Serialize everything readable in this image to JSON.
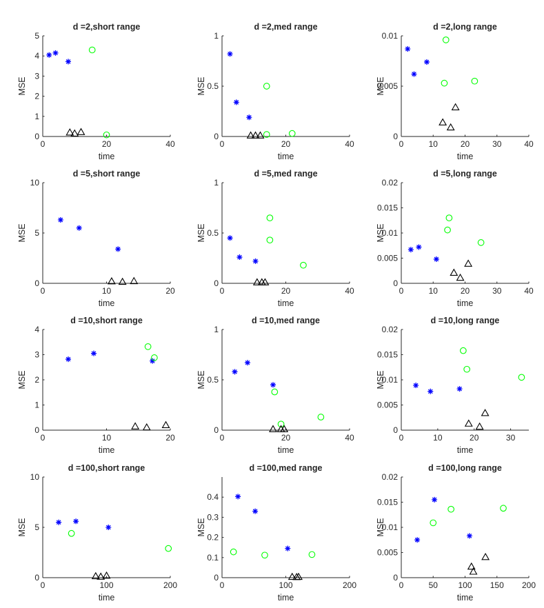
{
  "chart_data": [
    {
      "type": "scatter",
      "title": "d =2,short range",
      "xlabel": "time",
      "ylabel": "MSE",
      "xlim": [
        0,
        40
      ],
      "ylim": [
        0,
        5
      ],
      "xticks": [
        "0",
        "20",
        "40"
      ],
      "yticks": [
        "0",
        "1",
        "2",
        "3",
        "4",
        "5"
      ],
      "series": [
        {
          "name": "star",
          "marker": "*",
          "color": "#0000ff",
          "points": [
            [
              2,
              4.05
            ],
            [
              4,
              4.15
            ],
            [
              8,
              3.72
            ]
          ]
        },
        {
          "name": "circle",
          "marker": "o",
          "color": "#00ff00",
          "points": [
            [
              15.5,
              4.3
            ],
            [
              20,
              0.08
            ]
          ]
        },
        {
          "name": "triangle",
          "marker": "^",
          "color": "#000000",
          "points": [
            [
              8.5,
              0.2
            ],
            [
              10,
              0.15
            ],
            [
              12,
              0.22
            ]
          ]
        }
      ]
    },
    {
      "type": "scatter",
      "title": "d =2,med range",
      "xlabel": "time",
      "ylabel": "MSE",
      "xlim": [
        0,
        40
      ],
      "ylim": [
        0,
        1
      ],
      "xticks": [
        "0",
        "20",
        "40"
      ],
      "yticks": [
        "0",
        "0.5",
        "1"
      ],
      "series": [
        {
          "name": "star",
          "marker": "*",
          "color": "#0000ff",
          "points": [
            [
              2.5,
              0.82
            ],
            [
              4.5,
              0.34
            ],
            [
              8.5,
              0.19
            ]
          ]
        },
        {
          "name": "circle",
          "marker": "o",
          "color": "#00ff00",
          "points": [
            [
              14,
              0.5
            ],
            [
              14,
              0.02
            ],
            [
              22,
              0.03
            ]
          ]
        },
        {
          "name": "triangle",
          "marker": "^",
          "color": "#000000",
          "points": [
            [
              9,
              0.01
            ],
            [
              10.5,
              0.01
            ],
            [
              12,
              0.01
            ]
          ]
        }
      ]
    },
    {
      "type": "scatter",
      "title": "d =2,long range",
      "xlabel": "time",
      "ylabel": "MSE",
      "xlim": [
        0,
        40
      ],
      "ylim": [
        0,
        0.01
      ],
      "xticks": [
        "0",
        "10",
        "20",
        "30",
        "40"
      ],
      "yticks": [
        "0",
        "0.005",
        "0.01"
      ],
      "series": [
        {
          "name": "star",
          "marker": "*",
          "color": "#0000ff",
          "points": [
            [
              2,
              0.0087
            ],
            [
              4,
              0.0062
            ],
            [
              8,
              0.0074
            ]
          ]
        },
        {
          "name": "circle",
          "marker": "o",
          "color": "#00ff00",
          "points": [
            [
              14,
              0.0096
            ],
            [
              13.5,
              0.0053
            ],
            [
              23,
              0.0055
            ]
          ]
        },
        {
          "name": "triangle",
          "marker": "^",
          "color": "#000000",
          "points": [
            [
              13,
              0.0014
            ],
            [
              15.5,
              0.0009
            ],
            [
              17,
              0.0029
            ]
          ]
        }
      ]
    },
    {
      "type": "scatter",
      "title": "d =5,short range",
      "xlabel": "time",
      "ylabel": "MSE",
      "xlim": [
        0,
        20
      ],
      "ylim": [
        0,
        10
      ],
      "xticks": [
        "0",
        "10",
        "20"
      ],
      "yticks": [
        "0",
        "5",
        "10"
      ],
      "series": [
        {
          "name": "star",
          "marker": "*",
          "color": "#0000ff",
          "points": [
            [
              2.8,
              6.3
            ],
            [
              5.7,
              5.5
            ],
            [
              11.8,
              3.4
            ]
          ]
        },
        {
          "name": "circle",
          "marker": "o",
          "color": "#00ff00",
          "points": []
        },
        {
          "name": "triangle",
          "marker": "^",
          "color": "#000000",
          "points": [
            [
              10.8,
              0.2
            ],
            [
              12.5,
              0.15
            ],
            [
              14.3,
              0.22
            ]
          ]
        }
      ]
    },
    {
      "type": "scatter",
      "title": "d =5,med range",
      "xlabel": "time",
      "ylabel": "MSE",
      "xlim": [
        0,
        40
      ],
      "ylim": [
        0,
        1
      ],
      "xticks": [
        "0",
        "20",
        "40"
      ],
      "yticks": [
        "0",
        "0.5",
        "1"
      ],
      "series": [
        {
          "name": "star",
          "marker": "*",
          "color": "#0000ff",
          "points": [
            [
              2.5,
              0.45
            ],
            [
              5.5,
              0.26
            ],
            [
              10.5,
              0.22
            ]
          ]
        },
        {
          "name": "circle",
          "marker": "o",
          "color": "#00ff00",
          "points": [
            [
              15,
              0.65
            ],
            [
              15,
              0.43
            ],
            [
              25.5,
              0.18
            ]
          ]
        },
        {
          "name": "triangle",
          "marker": "^",
          "color": "#000000",
          "points": [
            [
              11,
              0.01
            ],
            [
              12.5,
              0.01
            ],
            [
              13.5,
              0.01
            ]
          ]
        }
      ]
    },
    {
      "type": "scatter",
      "title": "d =5,long range",
      "xlabel": "time",
      "ylabel": "MSE",
      "xlim": [
        0,
        40
      ],
      "ylim": [
        0,
        0.02
      ],
      "xticks": [
        "0",
        "10",
        "20",
        "30",
        "40"
      ],
      "yticks": [
        "0",
        "0.005",
        "0.01",
        "0.015",
        "0.02"
      ],
      "series": [
        {
          "name": "star",
          "marker": "*",
          "color": "#0000ff",
          "points": [
            [
              3,
              0.0067
            ],
            [
              5.5,
              0.0072
            ],
            [
              11,
              0.0048
            ]
          ]
        },
        {
          "name": "circle",
          "marker": "o",
          "color": "#00ff00",
          "points": [
            [
              15,
              0.013
            ],
            [
              14.5,
              0.0106
            ],
            [
              25,
              0.0081
            ]
          ]
        },
        {
          "name": "triangle",
          "marker": "^",
          "color": "#000000",
          "points": [
            [
              16.5,
              0.0021
            ],
            [
              18.5,
              0.0011
            ],
            [
              21,
              0.0039
            ]
          ]
        }
      ]
    },
    {
      "type": "scatter",
      "title": "d =10,short range",
      "xlabel": "time",
      "ylabel": "MSE",
      "xlim": [
        0,
        20
      ],
      "ylim": [
        0,
        4
      ],
      "xticks": [
        "0",
        "10",
        "20"
      ],
      "yticks": [
        "0",
        "1",
        "2",
        "3",
        "4"
      ],
      "series": [
        {
          "name": "star",
          "marker": "*",
          "color": "#0000ff",
          "points": [
            [
              4,
              2.82
            ],
            [
              8,
              3.05
            ],
            [
              17.2,
              2.75
            ]
          ]
        },
        {
          "name": "circle",
          "marker": "o",
          "color": "#00ff00",
          "points": [
            [
              16.5,
              3.32
            ],
            [
              17.5,
              2.88
            ]
          ]
        },
        {
          "name": "triangle",
          "marker": "^",
          "color": "#000000",
          "points": [
            [
              14.5,
              0.15
            ],
            [
              16.3,
              0.11
            ],
            [
              19.3,
              0.2
            ]
          ]
        }
      ]
    },
    {
      "type": "scatter",
      "title": "d =10,med range",
      "xlabel": "time",
      "ylabel": "MSE",
      "xlim": [
        0,
        40
      ],
      "ylim": [
        0,
        1
      ],
      "xticks": [
        "0",
        "20",
        "40"
      ],
      "yticks": [
        "0",
        "0.5",
        "1"
      ],
      "series": [
        {
          "name": "star",
          "marker": "*",
          "color": "#0000ff",
          "points": [
            [
              4,
              0.58
            ],
            [
              8,
              0.67
            ],
            [
              16,
              0.45
            ]
          ]
        },
        {
          "name": "circle",
          "marker": "o",
          "color": "#00ff00",
          "points": [
            [
              16.5,
              0.38
            ],
            [
              18.5,
              0.06
            ],
            [
              31,
              0.13
            ]
          ]
        },
        {
          "name": "triangle",
          "marker": "^",
          "color": "#000000",
          "points": [
            [
              16,
              0.01
            ],
            [
              18.5,
              0.01
            ],
            [
              19.5,
              0.01
            ]
          ]
        }
      ]
    },
    {
      "type": "scatter",
      "title": "d =10,long range",
      "xlabel": "time",
      "ylabel": "MSE",
      "xlim": [
        0,
        35
      ],
      "ylim": [
        0,
        0.02
      ],
      "xticks": [
        "0",
        "10",
        "20",
        "30"
      ],
      "yticks": [
        "0",
        "0.005",
        "0.01",
        "0.015",
        "0.02"
      ],
      "series": [
        {
          "name": "star",
          "marker": "*",
          "color": "#0000ff",
          "points": [
            [
              4,
              0.0089
            ],
            [
              8,
              0.0077
            ],
            [
              16,
              0.0082
            ]
          ]
        },
        {
          "name": "circle",
          "marker": "o",
          "color": "#00ff00",
          "points": [
            [
              17,
              0.0158
            ],
            [
              18,
              0.0121
            ],
            [
              33,
              0.0105
            ]
          ]
        },
        {
          "name": "triangle",
          "marker": "^",
          "color": "#000000",
          "points": [
            [
              18.5,
              0.0013
            ],
            [
              21.5,
              0.0007
            ],
            [
              23,
              0.0034
            ]
          ]
        }
      ]
    },
    {
      "type": "scatter",
      "title": "d =100,short range",
      "xlabel": "time",
      "ylabel": "MSE",
      "xlim": [
        0,
        200
      ],
      "ylim": [
        0,
        10
      ],
      "xticks": [
        "0",
        "100",
        "200"
      ],
      "yticks": [
        "0",
        "5",
        "10"
      ],
      "series": [
        {
          "name": "star",
          "marker": "*",
          "color": "#0000ff",
          "points": [
            [
              25,
              5.5
            ],
            [
              52,
              5.6
            ],
            [
              103,
              5.0
            ]
          ]
        },
        {
          "name": "circle",
          "marker": "o",
          "color": "#00ff00",
          "points": [
            [
              45,
              4.4
            ],
            [
              197,
              2.9
            ]
          ]
        },
        {
          "name": "triangle",
          "marker": "^",
          "color": "#000000",
          "points": [
            [
              83,
              0.15
            ],
            [
              91,
              0.1
            ],
            [
              100,
              0.2
            ]
          ]
        }
      ]
    },
    {
      "type": "scatter",
      "title": "d =100,med range",
      "xlabel": "time",
      "ylabel": "MSE",
      "xlim": [
        0,
        200
      ],
      "ylim": [
        0,
        0.5
      ],
      "xticks": [
        "0",
        "100",
        "200"
      ],
      "yticks": [
        "0",
        "0.1",
        "0.2",
        "0.3",
        "0.4"
      ],
      "series": [
        {
          "name": "star",
          "marker": "*",
          "color": "#0000ff",
          "points": [
            [
              25,
              0.403
            ],
            [
              52,
              0.33
            ],
            [
              103,
              0.145
            ]
          ]
        },
        {
          "name": "circle",
          "marker": "o",
          "color": "#00ff00",
          "points": [
            [
              18,
              0.128
            ],
            [
              67,
              0.112
            ],
            [
              141,
              0.115
            ]
          ]
        },
        {
          "name": "triangle",
          "marker": "^",
          "color": "#000000",
          "points": [
            [
              110,
              0.004
            ],
            [
              117,
              0.003
            ],
            [
              120,
              0.004
            ]
          ]
        }
      ]
    },
    {
      "type": "scatter",
      "title": "d =100,long range",
      "xlabel": "time",
      "ylabel": "MSE",
      "xlim": [
        0,
        200
      ],
      "ylim": [
        0,
        0.02
      ],
      "xticks": [
        "0",
        "50",
        "100",
        "150",
        "200"
      ],
      "yticks": [
        "0",
        "0.005",
        "0.01",
        "0.015",
        "0.02"
      ],
      "series": [
        {
          "name": "star",
          "marker": "*",
          "color": "#0000ff",
          "points": [
            [
              25,
              0.0075
            ],
            [
              52,
              0.0155
            ],
            [
              107,
              0.0083
            ]
          ]
        },
        {
          "name": "circle",
          "marker": "o",
          "color": "#00ff00",
          "points": [
            [
              50,
              0.0109
            ],
            [
              78,
              0.0136
            ],
            [
              160,
              0.0138
            ]
          ]
        },
        {
          "name": "triangle",
          "marker": "^",
          "color": "#000000",
          "points": [
            [
              110,
              0.0022
            ],
            [
              113,
              0.0012
            ],
            [
              132,
              0.0041
            ]
          ]
        }
      ]
    }
  ]
}
